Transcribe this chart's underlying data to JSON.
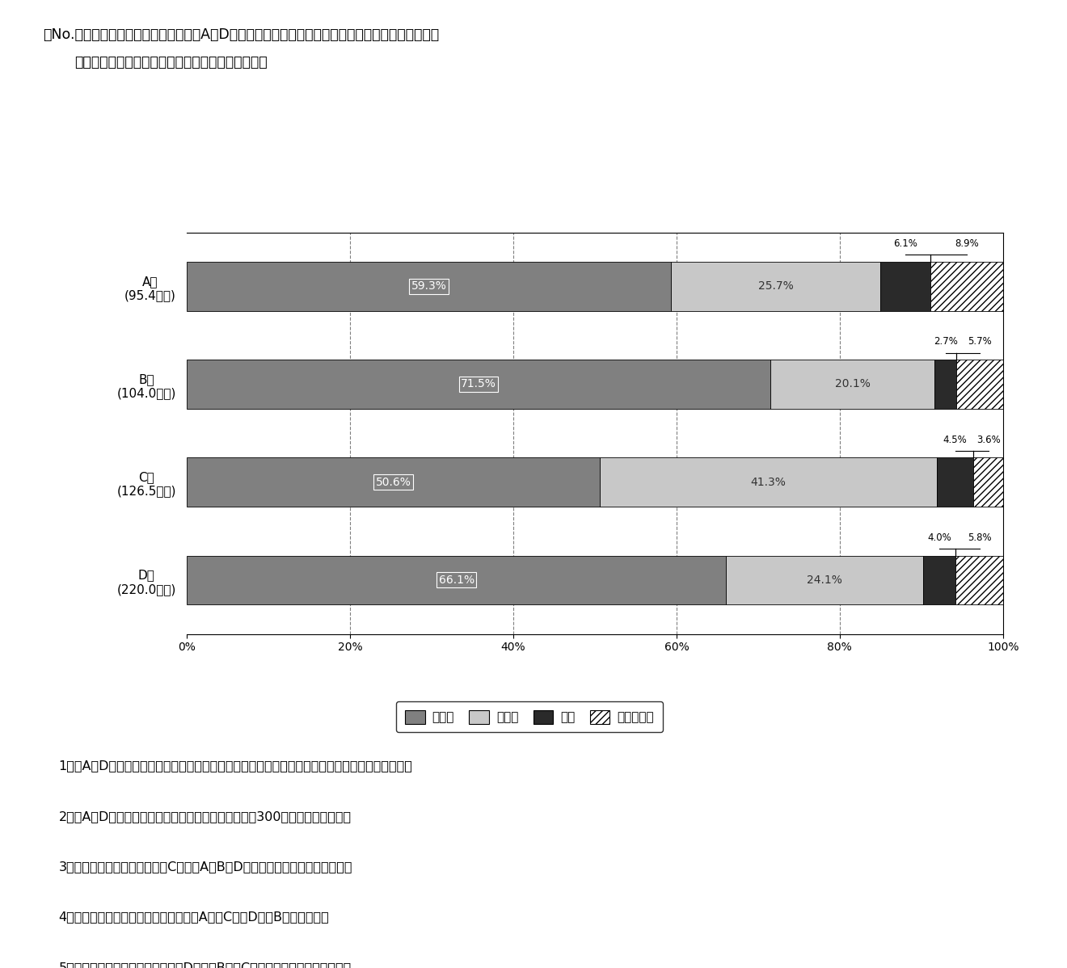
{
  "title_line1": "『No.　　』　図は，ある年度におけるA～Dの４市の図書館資料の貸出点数及びその内訳を示したも",
  "title_line2": "　　のである。これから確実にいえるのはどれか。",
  "categories": [
    "A市\n(95.4万点)",
    "B市\n(104.0万点)",
    "C市\n(126.5万点)",
    "D市\n(220.0万点)"
  ],
  "general_books": [
    59.3,
    71.5,
    50.6,
    66.1
  ],
  "childrens_books": [
    25.7,
    20.1,
    41.3,
    24.1
  ],
  "magazines": [
    6.1,
    2.7,
    4.5,
    4.0
  ],
  "av_materials": [
    8.9,
    5.7,
    3.6,
    5.8
  ],
  "color_general": "#808080",
  "color_children": "#c8c8c8",
  "color_magazine": "#2a2a2a",
  "color_av": "#ffffff",
  "legend_labels": [
    "一般書",
    "児童書",
    "雑誌",
    "視聴覚資料"
  ],
  "answers": [
    "1．　A～Dのいずれの市においても，一般書の貸出点数は児童書の貸出点数の２倍以上であった。",
    "2．　A～Dの４市を合計すると，一般書の貸出点数は300万点以上であった。",
    "3．　児童書の貸出点数では，C市は，A，B，Dの３市の合計よりも多かった。",
    "4．　雑誌の貸出点数では，多い順に，A市，C市，D市，B市であった。",
    "5．　視聴覚資料の貸出点数では，D市は，B市とC市の合計よりも少なかった。"
  ]
}
